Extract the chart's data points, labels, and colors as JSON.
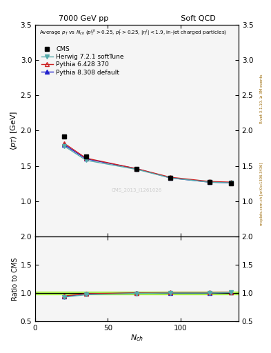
{
  "title_left": "7000 GeV pp",
  "title_right": "Soft QCD",
  "right_label_top": "Rivet 3.1.10, ≥ 3M events",
  "right_label_bottom": "mcplots.cern.ch [arXiv:1306.3436]",
  "watermark": "CMS_2013_I1261026",
  "main_ylabel": "⟨p_T⟩ [GeV]",
  "ratio_ylabel": "Ratio to CMS",
  "annotation": "Average p_T vs N_ch (p_T^{ch}>0.25, p_T^j>0.25, |η^j|<1.9, in-jet charged particles)",
  "ylim_main": [
    0.5,
    3.5
  ],
  "ylim_ratio": [
    0.5,
    2.0
  ],
  "xlim": [
    0,
    140
  ],
  "xticks": [
    0,
    50,
    100
  ],
  "yticks_main": [
    1.0,
    1.5,
    2.0,
    2.5,
    3.0,
    3.5
  ],
  "yticks_ratio": [
    0.5,
    1.0,
    1.5,
    2.0
  ],
  "nch": [
    20,
    35,
    70,
    93,
    120,
    135
  ],
  "cms_y": [
    1.92,
    1.63,
    1.46,
    1.33,
    1.27,
    1.25
  ],
  "herwig_y": [
    1.78,
    1.58,
    1.45,
    1.33,
    1.27,
    1.26
  ],
  "pythia6_y": [
    1.82,
    1.61,
    1.46,
    1.34,
    1.28,
    1.27
  ],
  "pythia8_y": [
    1.8,
    1.6,
    1.46,
    1.33,
    1.27,
    1.26
  ],
  "cms_color": "black",
  "herwig_color": "#55AAAA",
  "pythia6_color": "#CC2222",
  "pythia8_color": "#2222CC",
  "green_band_color": "#88EE00",
  "green_band_alpha": 0.6,
  "legend_entries": [
    "CMS",
    "Herwig 7.2.1 softTune",
    "Pythia 6.428 370",
    "Pythia 8.308 default"
  ],
  "background_color": "#f5f5f5"
}
